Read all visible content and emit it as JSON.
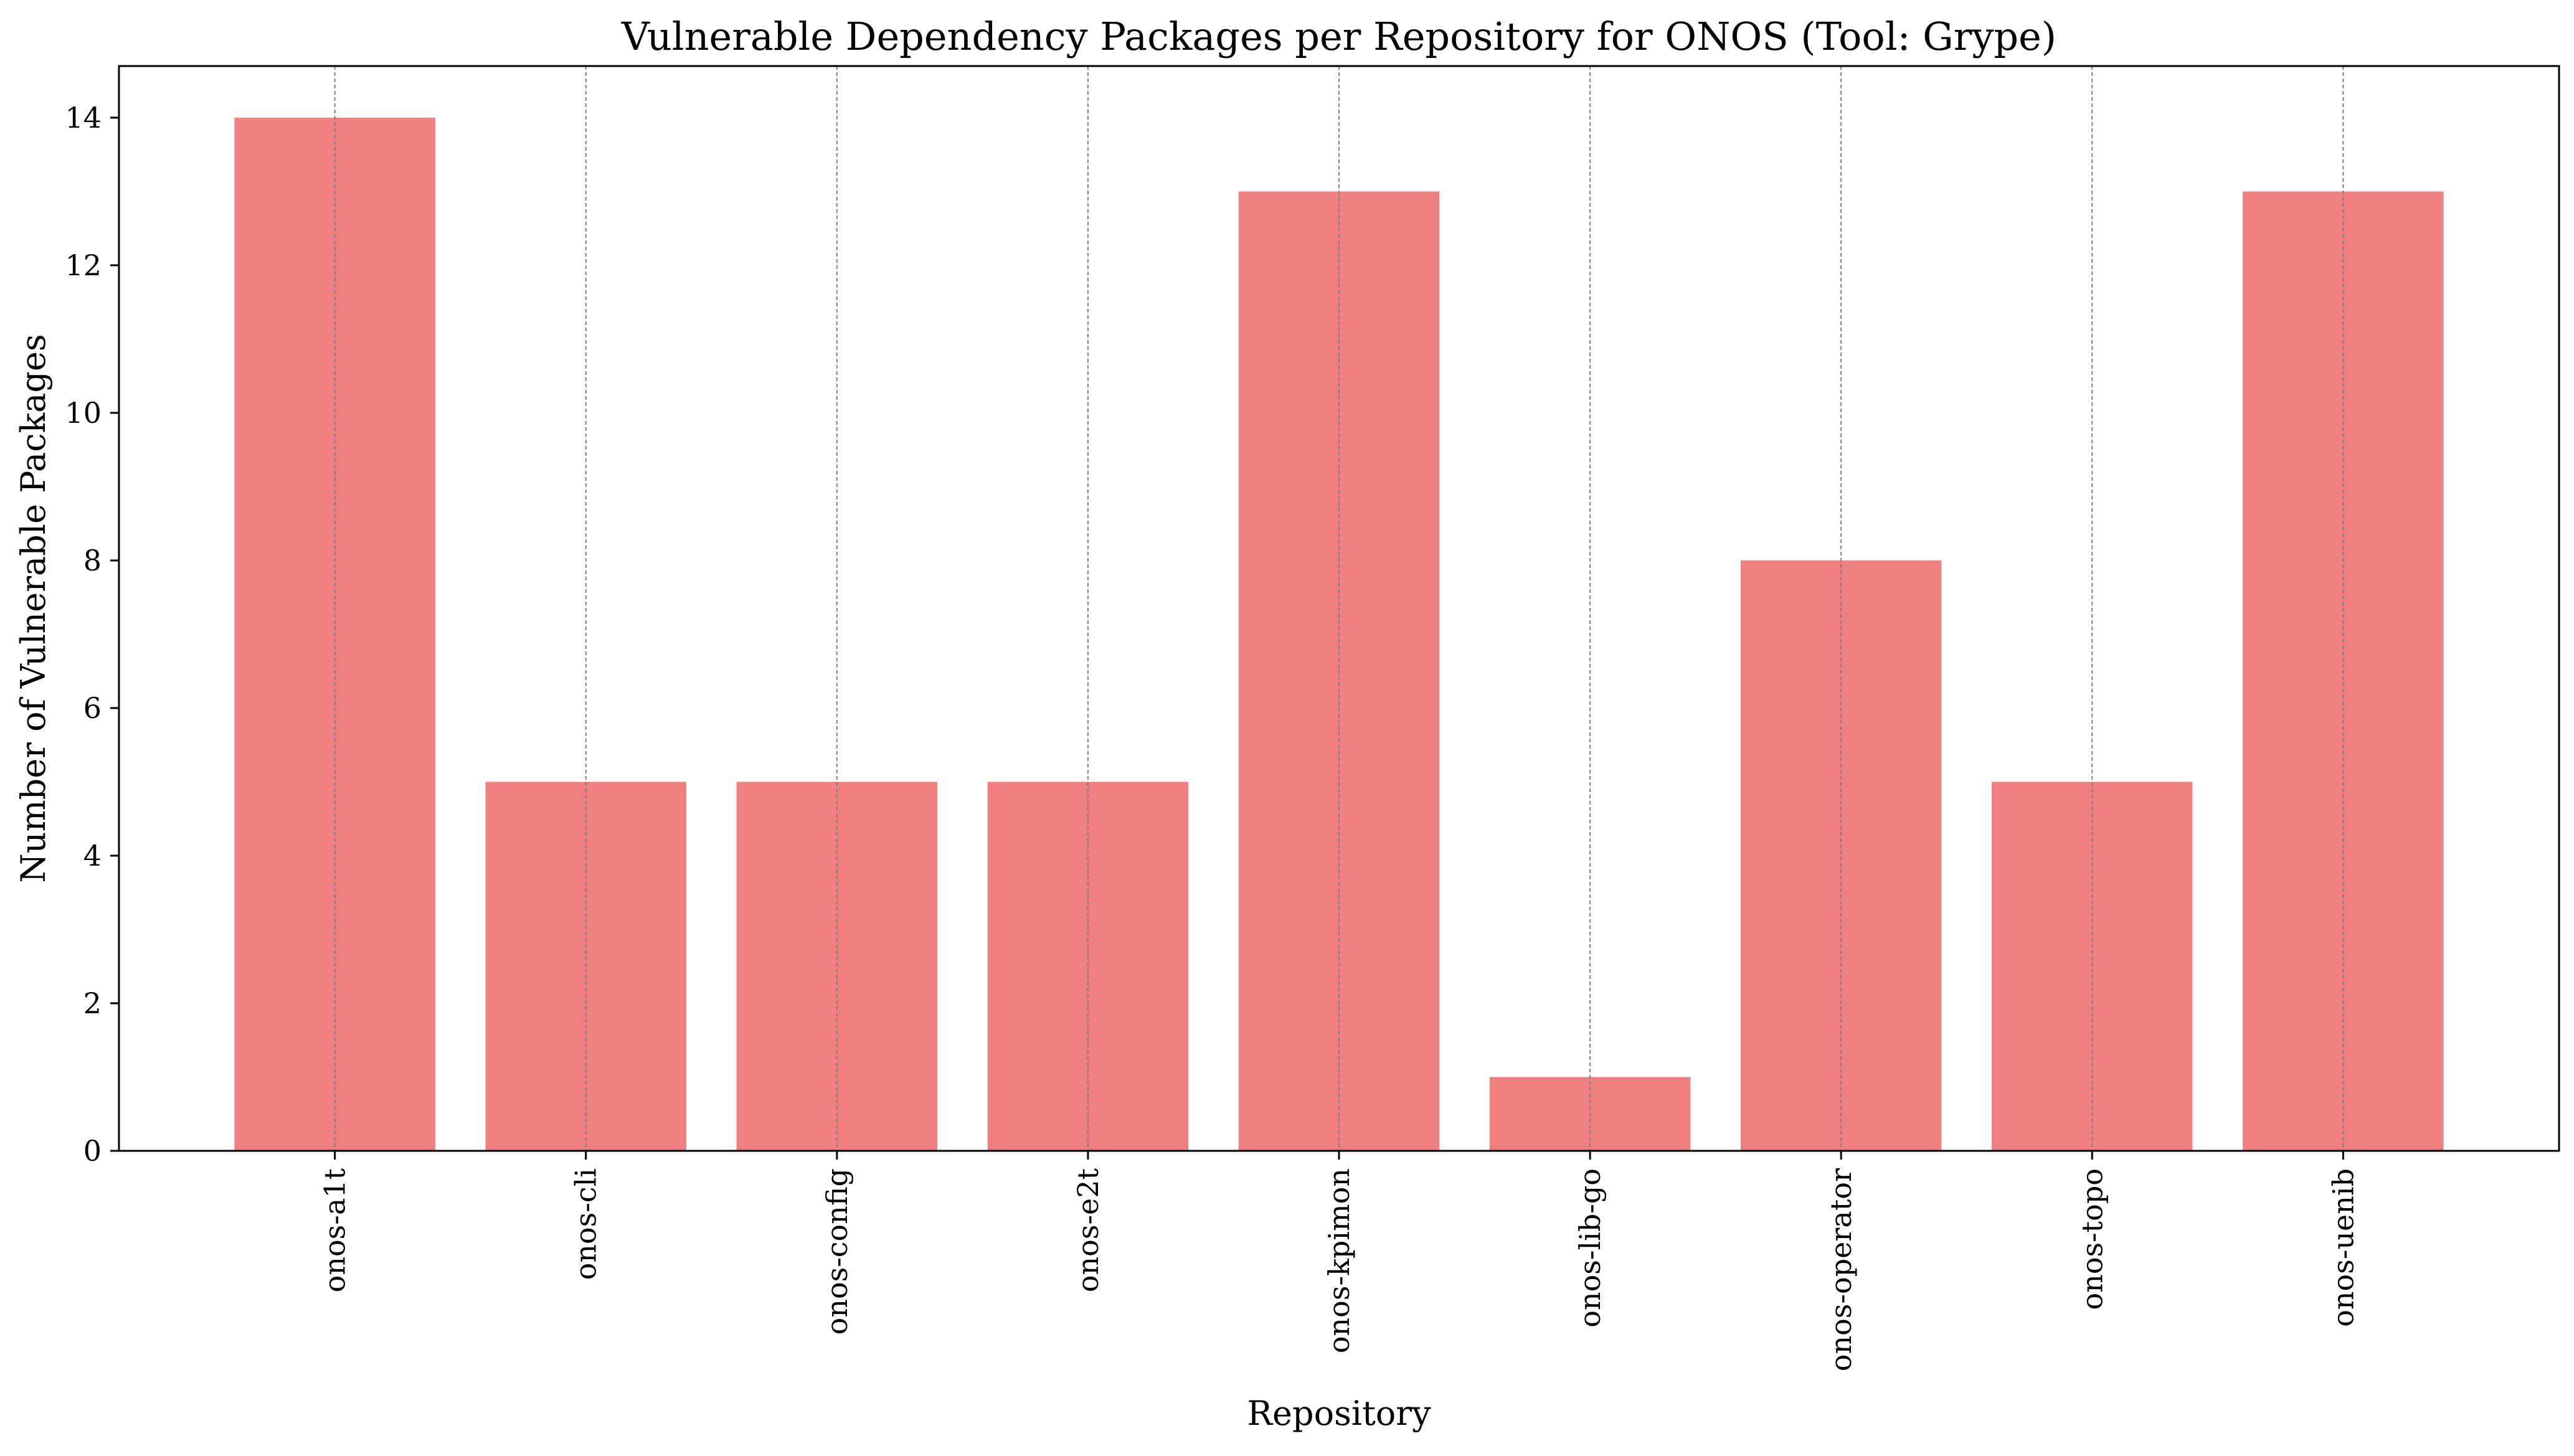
{
  "chart_data": {
    "type": "bar",
    "title": "Vulnerable Dependency Packages per Repository for ONOS (Tool: Grype)",
    "xlabel": "Repository",
    "ylabel": "Number of Vulnerable Packages",
    "categories": [
      "onos-a1t",
      "onos-cli",
      "onos-config",
      "onos-e2t",
      "onos-kpimon",
      "onos-lib-go",
      "onos-operator",
      "onos-topo",
      "onos-uenib"
    ],
    "values": [
      14,
      5,
      5,
      5,
      13,
      1,
      8,
      5,
      13
    ],
    "ylim": [
      0,
      14.7
    ],
    "yticks": [
      0,
      2,
      4,
      6,
      8,
      10,
      12,
      14
    ],
    "grid": "vertical dashed at category positions",
    "legend": "none",
    "bar_color": "#F08080",
    "grid_color": "#808080"
  }
}
